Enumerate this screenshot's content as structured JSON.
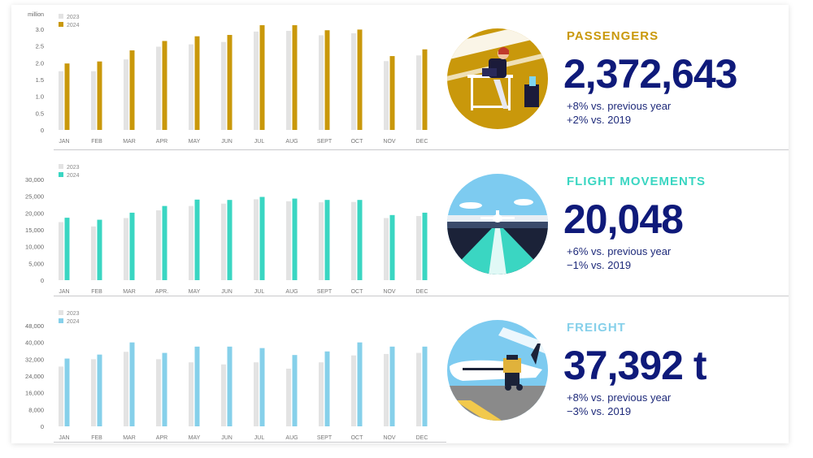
{
  "stats": [
    {
      "title": "PASSENGERS",
      "title_color": "#c9980b",
      "value": "2,372,643",
      "line1": "+8% vs. previous year",
      "line2": "+2% vs. 2019"
    },
    {
      "title": "FLIGHT MOVEMENTS",
      "title_color": "#3ad6c2",
      "value": "20,048",
      "line1": "+6% vs. previous year",
      "line2": "−1% vs. 2019"
    },
    {
      "title": "FREIGHT",
      "title_color": "#86d0ea",
      "value": "37,392 t",
      "line1": "+8% vs. previous year",
      "line2": "−3% vs. 2019"
    }
  ],
  "chart_data": [
    {
      "type": "bar",
      "ylabel": "million",
      "categories": [
        "JAN",
        "FEB",
        "MAR",
        "APR",
        "MAY",
        "JUN",
        "JUL",
        "AUG",
        "SEPT",
        "OCT",
        "NOV",
        "DEC"
      ],
      "yticks": [
        "0",
        "0.5",
        "1.0",
        "1.5",
        "2.0",
        "2.5",
        "3.0"
      ],
      "ylim": [
        0,
        3.0
      ],
      "legend": "top-left",
      "series": [
        {
          "name": "2023",
          "color": "#e3e3e3",
          "values": [
            1.75,
            1.75,
            2.1,
            2.48,
            2.55,
            2.62,
            2.93,
            2.95,
            2.82,
            2.88,
            2.05,
            2.22
          ]
        },
        {
          "name": "2024",
          "color": "#c9980b",
          "values": [
            1.98,
            2.04,
            2.37,
            2.65,
            2.79,
            2.83,
            3.12,
            3.12,
            2.97,
            2.99,
            2.2,
            2.4
          ]
        }
      ]
    },
    {
      "type": "bar",
      "ylabel": "",
      "categories": [
        "JAN",
        "FEB",
        "MAR",
        "APR.",
        "MAY",
        "JUN",
        "JUL",
        "AUG",
        "SEPT",
        "OCT",
        "NOV",
        "DEC"
      ],
      "yticks": [
        "0",
        "5,000",
        "10,000",
        "15,000",
        "20,000",
        "25,000",
        "30,000"
      ],
      "ylim": [
        0,
        30000
      ],
      "legend": "top-left",
      "series": [
        {
          "name": "2023",
          "color": "#e3e3e3",
          "values": [
            17300,
            16000,
            18500,
            20800,
            22100,
            22800,
            24100,
            23500,
            23200,
            23300,
            18500,
            19100
          ]
        },
        {
          "name": "2024",
          "color": "#3ad6c2",
          "values": [
            18600,
            18000,
            20100,
            22100,
            24000,
            23900,
            24800,
            24300,
            23900,
            23900,
            19400,
            20100
          ]
        }
      ]
    },
    {
      "type": "bar",
      "ylabel": "",
      "categories": [
        "JAN",
        "FEB",
        "MAR",
        "APR",
        "MAY",
        "JUN",
        "JUL",
        "AUG",
        "SEPT",
        "OCT",
        "NOV",
        "DEC"
      ],
      "yticks": [
        "0",
        "8,000",
        "16,000",
        "24,000",
        "32,000",
        "40,000",
        "48,000"
      ],
      "ylim": [
        0,
        48000
      ],
      "legend": "top-left",
      "series": [
        {
          "name": "2023",
          "color": "#e3e3e3",
          "values": [
            28500,
            32000,
            35500,
            32000,
            30500,
            29500,
            30500,
            27500,
            30500,
            33800,
            34500,
            35000
          ]
        },
        {
          "name": "2024",
          "color": "#86d0ea",
          "values": [
            32300,
            34200,
            40000,
            35000,
            38000,
            38000,
            37300,
            34000,
            35700,
            40000,
            38000,
            38000
          ]
        }
      ]
    }
  ]
}
